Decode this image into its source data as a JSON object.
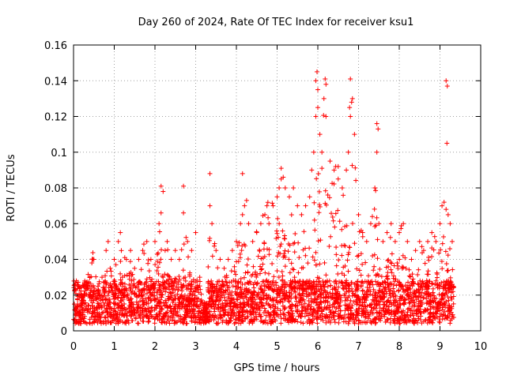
{
  "chart_data": {
    "type": "scatter",
    "title": "Day 260 of 2024, Rate Of TEC Index for receiver ksu1",
    "xlabel": "GPS time / hours",
    "ylabel": "ROTI / TECUs",
    "xlim": [
      0,
      10
    ],
    "ylim": [
      0,
      0.16
    ],
    "xticks": [
      "0",
      "1",
      "2",
      "3",
      "4",
      "5",
      "6",
      "7",
      "8",
      "9",
      "10"
    ],
    "yticks": [
      "0",
      "0.02",
      "0.04",
      "0.06",
      "0.08",
      "0.1",
      "0.12",
      "0.14",
      "0.16"
    ],
    "grid": true,
    "marker": "plus",
    "series_color": "#ff0000",
    "data_span_hours": [
      0,
      9.35
    ],
    "series": [
      {
        "name": "ROTI",
        "x": [
          0.05,
          0.1,
          0.2,
          0.3,
          0.4,
          0.45,
          0.5,
          0.6,
          0.7,
          0.8,
          0.85,
          0.9,
          1.0,
          1.1,
          1.15,
          1.2,
          1.3,
          1.4,
          1.5,
          1.6,
          1.7,
          1.8,
          1.9,
          2.0,
          2.1,
          2.15,
          2.2,
          2.25,
          2.3,
          2.4,
          2.5,
          2.6,
          2.7,
          2.8,
          2.9,
          3.0,
          3.1,
          3.2,
          3.35,
          3.4,
          3.5,
          3.6,
          3.7,
          3.8,
          3.9,
          4.0,
          4.1,
          4.15,
          4.2,
          4.25,
          4.3,
          4.4,
          4.5,
          4.6,
          4.7,
          4.75,
          4.8,
          4.9,
          5.0,
          5.05,
          5.1,
          5.15,
          5.2,
          5.3,
          5.4,
          5.5,
          5.6,
          5.7,
          5.8,
          5.85,
          5.9,
          5.95,
          6.0,
          6.05,
          6.1,
          6.15,
          6.2,
          6.3,
          6.4,
          6.5,
          6.6,
          6.7,
          6.75,
          6.8,
          6.85,
          6.9,
          7.0,
          7.1,
          7.2,
          7.3,
          7.4,
          7.45,
          7.5,
          7.6,
          7.7,
          7.8,
          7.9,
          8.0,
          8.1,
          8.2,
          8.3,
          8.4,
          8.5,
          8.6,
          8.7,
          8.8,
          8.9,
          9.0,
          9.05,
          9.1,
          9.15,
          9.2,
          9.25,
          9.3,
          2.15,
          2.7,
          3.35,
          4.15,
          5.95,
          5.98,
          6.18,
          6.8,
          6.83,
          7.45,
          9.15,
          9.18,
          6.0,
          6.2,
          6.78,
          7.48,
          9.17,
          6.1,
          6.5,
          5.1
        ],
        "y": [
          0.012,
          0.015,
          0.02,
          0.025,
          0.03,
          0.038,
          0.04,
          0.025,
          0.03,
          0.045,
          0.05,
          0.035,
          0.04,
          0.05,
          0.055,
          0.03,
          0.04,
          0.045,
          0.035,
          0.04,
          0.045,
          0.05,
          0.04,
          0.05,
          0.06,
          0.066,
          0.078,
          0.045,
          0.05,
          0.04,
          0.045,
          0.04,
          0.066,
          0.05,
          0.045,
          0.055,
          0.03,
          0.01,
          0.07,
          0.06,
          0.045,
          0.04,
          0.035,
          0.04,
          0.045,
          0.05,
          0.06,
          0.065,
          0.07,
          0.073,
          0.06,
          0.05,
          0.055,
          0.06,
          0.065,
          0.07,
          0.06,
          0.07,
          0.075,
          0.08,
          0.085,
          0.086,
          0.08,
          0.075,
          0.08,
          0.07,
          0.065,
          0.07,
          0.075,
          0.09,
          0.1,
          0.12,
          0.125,
          0.11,
          0.1,
          0.13,
          0.12,
          0.095,
          0.09,
          0.085,
          0.08,
          0.09,
          0.1,
          0.12,
          0.13,
          0.11,
          0.065,
          0.055,
          0.05,
          0.06,
          0.08,
          0.1,
          0.06,
          0.05,
          0.055,
          0.06,
          0.05,
          0.055,
          0.06,
          0.05,
          0.04,
          0.045,
          0.05,
          0.045,
          0.05,
          0.055,
          0.05,
          0.06,
          0.07,
          0.072,
          0.068,
          0.065,
          0.06,
          0.05,
          0.081,
          0.081,
          0.088,
          0.088,
          0.14,
          0.145,
          0.141,
          0.141,
          0.128,
          0.116,
          0.14,
          0.137,
          0.135,
          0.138,
          0.125,
          0.113,
          0.105,
          0.091,
          0.092,
          0.091
        ]
      }
    ]
  }
}
